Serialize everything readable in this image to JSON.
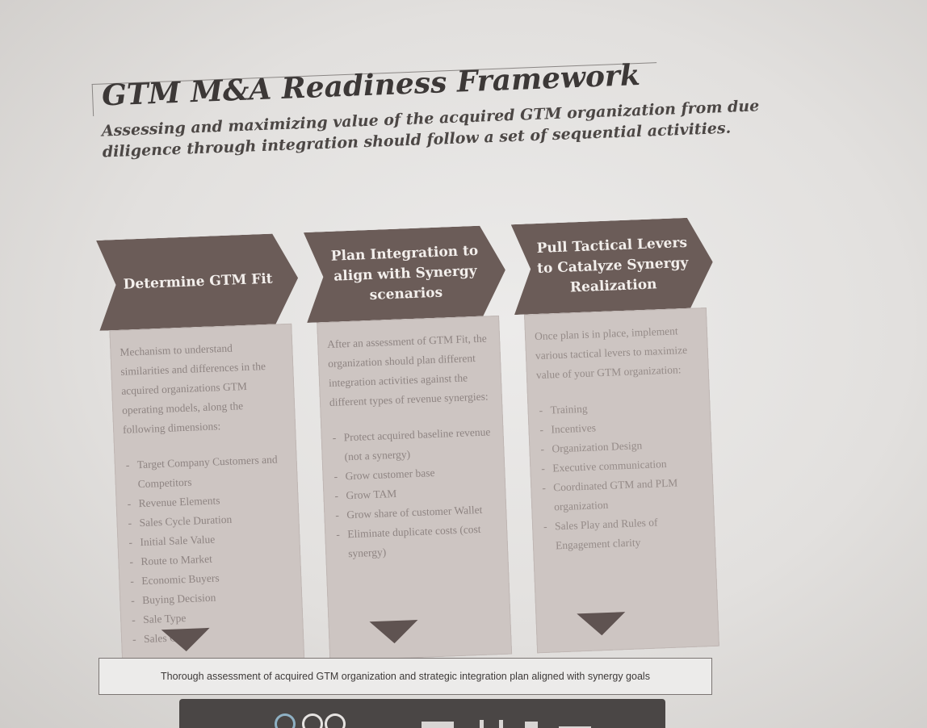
{
  "slide": {
    "title": "GTM M&A Readiness Framework",
    "subtitle": "Assessing and maximizing value of the acquired GTM organization from due diligence through integration should follow a set of sequential activities."
  },
  "columns": [
    {
      "heading": "Determine GTM Fit",
      "intro": "Mechanism to understand similarities and differences in the acquired organizations GTM operating models, along the following dimensions:",
      "bullets": [
        "Target Company Customers and Competitors",
        "Revenue Elements",
        "Sales Cycle Duration",
        "Initial Sale Value",
        "Route to Market",
        "Economic Buyers",
        "Buying Decision",
        "Sale Type",
        "Sales Cases"
      ]
    },
    {
      "heading": "Plan Integration to align with Synergy scenarios",
      "intro": "After an assessment of GTM Fit, the organization should plan different integration activities against the different types of revenue synergies:",
      "bullets": [
        "Protect acquired baseline revenue (not a synergy)",
        "Grow customer base",
        "Grow TAM",
        "Grow share of customer Wallet",
        "Eliminate duplicate costs (cost synergy)"
      ]
    },
    {
      "heading": "Pull Tactical Levers to Catalyze Synergy Realization",
      "intro": "Once plan is in place, implement various tactical levers to maximize value of your GTM organization:",
      "bullets": [
        "Training",
        "Incentives",
        "Organization Design",
        "Executive communication",
        "Coordinated GTM and PLM organization",
        "Sales Play and Rules of Engagement clarity"
      ]
    }
  ],
  "summary": "Thorough assessment of acquired GTM organization and strategic integration plan aligned with synergy goals",
  "colors": {
    "chevron": "#6b5c58",
    "card": "#cdc5c2",
    "arrow": "#5f5351"
  }
}
